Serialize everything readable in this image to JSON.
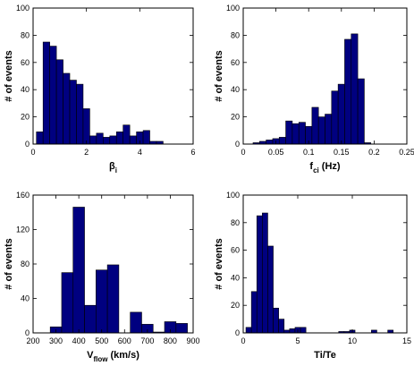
{
  "chart_data": [
    {
      "type": "bar",
      "id": "beta",
      "ylabel": "# of events",
      "xlabel_main": "β",
      "xlabel_sub": "i",
      "xlim": [
        0,
        6
      ],
      "ylim": [
        0,
        100
      ],
      "xticks": [
        0,
        2,
        4,
        6
      ],
      "yticks": [
        0,
        20,
        40,
        60,
        80,
        100
      ],
      "bin_width": 0.25,
      "x": [
        0.25,
        0.5,
        0.75,
        1.0,
        1.25,
        1.5,
        1.75,
        2.0,
        2.25,
        2.5,
        2.75,
        3.0,
        3.25,
        3.5,
        3.75,
        4.0,
        4.25,
        4.5,
        4.75
      ],
      "values": [
        9,
        75,
        72,
        62,
        52,
        47,
        44,
        26,
        6,
        8,
        5,
        6,
        9,
        14,
        6,
        9,
        10,
        2,
        2
      ]
    },
    {
      "type": "bar",
      "id": "fci",
      "ylabel": "# of events",
      "xlabel_main": "f",
      "xlabel_sub": "ci",
      "xlabel_suffix": " (Hz)",
      "xlim": [
        0,
        0.25
      ],
      "ylim": [
        0,
        100
      ],
      "xticks": [
        0,
        0.05,
        0.1,
        0.15,
        0.2,
        0.25
      ],
      "yticks": [
        0,
        20,
        40,
        60,
        80,
        100
      ],
      "bin_width": 0.01,
      "x": [
        0.02,
        0.03,
        0.04,
        0.05,
        0.06,
        0.07,
        0.08,
        0.09,
        0.1,
        0.11,
        0.12,
        0.13,
        0.14,
        0.15,
        0.16,
        0.17,
        0.18,
        0.19
      ],
      "values": [
        1,
        2,
        3,
        4,
        5,
        17,
        15,
        16,
        13,
        27,
        20,
        22,
        39,
        44,
        77,
        81,
        48,
        1
      ]
    },
    {
      "type": "bar",
      "id": "vflow",
      "ylabel": "# of events",
      "xlabel_main": "V",
      "xlabel_sub": "flow",
      "xlabel_suffix": " (km/s)",
      "xlim": [
        200,
        900
      ],
      "ylim": [
        0,
        160
      ],
      "xticks": [
        200,
        300,
        400,
        500,
        600,
        700,
        800,
        900
      ],
      "yticks": [
        0,
        40,
        80,
        120,
        160
      ],
      "bin_width": 50,
      "x": [
        300,
        350,
        400,
        450,
        500,
        550,
        600,
        650,
        700,
        750,
        800,
        850
      ],
      "values": [
        7,
        70,
        146,
        32,
        73,
        79,
        0,
        24,
        10,
        1,
        13,
        11
      ]
    },
    {
      "type": "bar",
      "id": "tite",
      "ylabel": "# of events",
      "xlabel_main": "Ti/Te",
      "xlim": [
        0,
        15
      ],
      "ylim": [
        0,
        100
      ],
      "xticks": [
        0,
        5,
        10,
        15
      ],
      "yticks": [
        0,
        20,
        40,
        60,
        80,
        100
      ],
      "bin_width": 0.5,
      "x": [
        0.5,
        1.0,
        1.5,
        2.0,
        2.5,
        3.0,
        3.5,
        4.0,
        4.5,
        5.0,
        5.5,
        6.0,
        6.5,
        7.0,
        7.5,
        8.0,
        8.5,
        9.0,
        9.5,
        10.0,
        10.5,
        11.0,
        11.5,
        12.0,
        12.5,
        13.0,
        13.5,
        14.0
      ],
      "values": [
        4,
        30,
        85,
        87,
        63,
        18,
        10,
        2,
        3,
        4,
        4,
        0,
        0,
        0,
        0,
        0,
        0,
        1,
        1,
        2,
        0,
        0,
        0,
        2,
        0,
        0,
        2,
        0
      ]
    }
  ]
}
